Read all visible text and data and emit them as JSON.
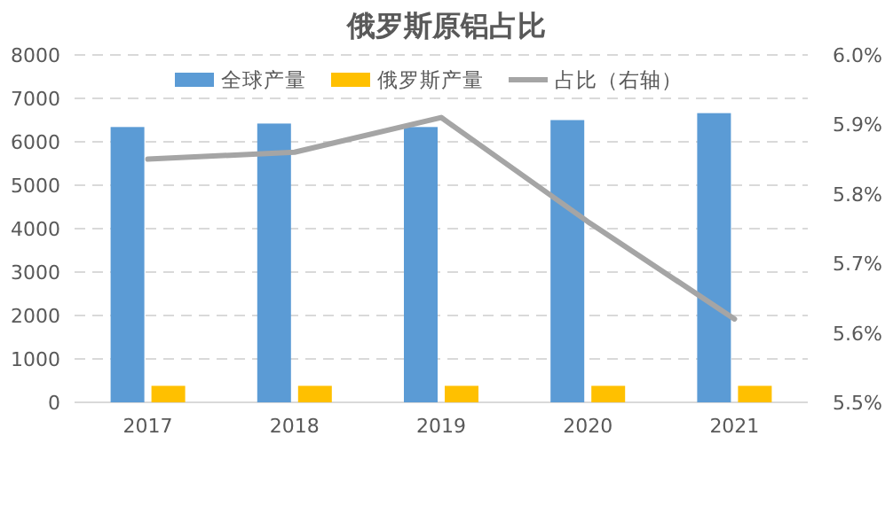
{
  "chart_data": {
    "type": "bar",
    "title": "俄罗斯原铝占比",
    "categories": [
      "2017",
      "2018",
      "2019",
      "2020",
      "2021"
    ],
    "series": [
      {
        "name": "全球产量",
        "color": "#5b9bd5",
        "values": [
          6340,
          6420,
          6340,
          6500,
          6660
        ]
      },
      {
        "name": "俄罗斯产量",
        "color": "#ffc000",
        "values": [
          380,
          380,
          380,
          380,
          380
        ]
      },
      {
        "name": "占比（右轴）",
        "type": "line",
        "axis": "y2",
        "color": "#a5a5a5",
        "values": [
          5.85,
          5.86,
          5.91,
          5.76,
          5.62
        ]
      }
    ],
    "ylim": [
      0,
      8000
    ],
    "yticks": [
      0,
      1000,
      2000,
      3000,
      4000,
      5000,
      6000,
      7000,
      8000
    ],
    "y2lim": [
      5.5,
      6.0
    ],
    "y2ticks": [
      {
        "value": 5.5,
        "label": "5.5%"
      },
      {
        "value": 5.6,
        "label": "5.6%"
      },
      {
        "value": 5.7,
        "label": "5.7%"
      },
      {
        "value": 5.8,
        "label": "5.8%"
      },
      {
        "value": 5.9,
        "label": "5.9%"
      },
      {
        "value": 6.0,
        "label": "6.0%"
      }
    ],
    "grid": "y",
    "legend": "top"
  }
}
